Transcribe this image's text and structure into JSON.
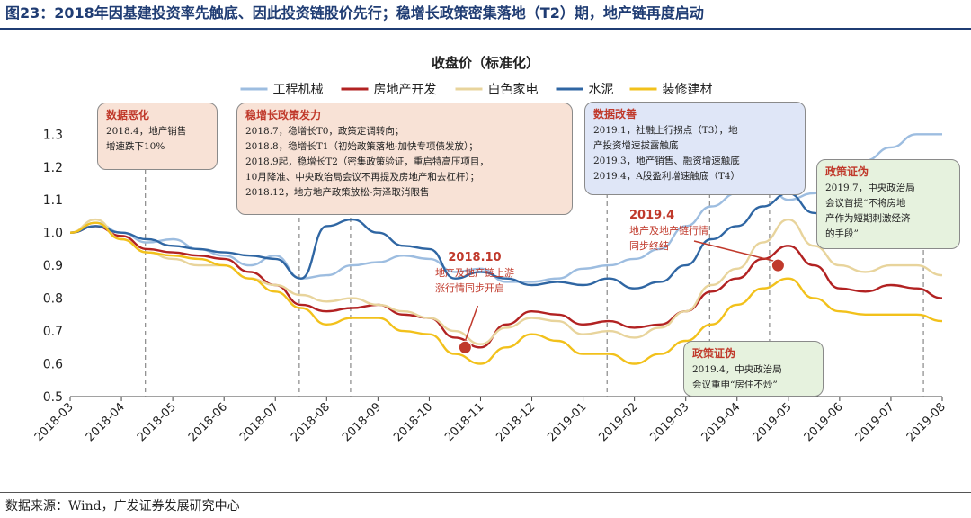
{
  "caption": "图23：2018年因基建投资率先触底、因此投资链股价先行；稳增长政策密集落地（T2）期，地产链再度启动",
  "source": "数据来源：Wind，广发证券发展研究中心",
  "colors": {
    "caption": "#1f3c73",
    "annotation_red": "#c0392b",
    "box_beige": "#f8e2d6",
    "box_blue": "#dfe6f7",
    "box_green": "#e6f2de"
  },
  "annotations": {
    "boxes": [
      {
        "title": "数据恶化",
        "lines": [
          "2018.4，地产销售",
          "增速跌下10%"
        ],
        "fill": "#f8e2d6"
      },
      {
        "title": "稳增长政策发力",
        "lines": [
          "2018.7，稳增长T0，政策定调转向；",
          "2018.8，稳增长T1（初始政策落地-加快专项债发放）；",
          "2018.9起，稳增长T2（密集政策验证，重启特高压项目，",
          "10月降准、中央政治局会议不再提及房地产和去杠杆）；",
          "2018.12，地方地产政策放松-菏泽取消限售"
        ],
        "fill": "#f8e2d6"
      },
      {
        "title": "数据改善",
        "lines": [
          "2019.1，社融上行拐点（T3），地",
          "产投资增速拔露触底",
          "2019.3，地产销售、融资增速触底",
          "2019.4，A股盈利增速触底（T4）"
        ],
        "fill": "#dfe6f7"
      },
      {
        "title": "政策证伪",
        "lines": [
          "2019.7，中央政治局",
          "会议首提“不将房地",
          "产作为短期刺激经济",
          "的手段”"
        ],
        "fill": "#e6f2de"
      },
      {
        "title": "政策证伪",
        "lines": [
          "2019.4，中央政治局",
          "会议重申“房住不炒”"
        ],
        "fill": "#e6f2de"
      }
    ],
    "red_labels": [
      {
        "date": "2018.10",
        "lines": [
          "地产及地产链上游",
          "涨行情同步开启"
        ]
      },
      {
        "date": "2019.4",
        "lines": [
          "地产及地产链行情",
          "同步终结"
        ]
      }
    ]
  },
  "chart_data": {
    "type": "line",
    "title": "收盘价（标准化）",
    "xlabel": "",
    "ylabel": "",
    "x_ticks": [
      "2018-03",
      "2018-04",
      "2018-05",
      "2018-06",
      "2018-07",
      "2018-08",
      "2018-09",
      "2018-10",
      "2018-11",
      "2018-12",
      "2019-01",
      "2019-02",
      "2019-03",
      "2019-04",
      "2019-05",
      "2019-06",
      "2019-07",
      "2019-08"
    ],
    "y_ticks": [
      0.5,
      0.6,
      0.7,
      0.8,
      0.9,
      1.0,
      1.1,
      1.2,
      1.3
    ],
    "ylim": [
      0.5,
      1.32
    ],
    "grid": false,
    "legend": "top",
    "x_step": "half-month",
    "x_start": "2018-03-01",
    "event_lines": [
      "2018-04-15",
      "2018-07-15",
      "2018-08-15",
      "2019-01-15",
      "2019-03-15",
      "2019-04-20",
      "2019-07-20"
    ],
    "markers": [
      {
        "x": "2018-10-22",
        "y": 0.65,
        "color": "#c0392b"
      },
      {
        "x": "2019-04-25",
        "y": 0.9,
        "color": "#c0392b"
      }
    ],
    "series": [
      {
        "name": "工程机械",
        "color": "#9dbde0",
        "values": [
          1.0,
          1.03,
          1.0,
          0.97,
          0.98,
          0.95,
          0.93,
          0.9,
          0.93,
          0.86,
          0.87,
          0.9,
          0.91,
          0.93,
          0.92,
          0.88,
          0.89,
          0.85,
          0.85,
          0.86,
          0.89,
          0.9,
          0.92,
          0.95,
          1.02,
          1.08,
          1.12,
          1.17,
          1.1,
          1.12,
          1.18,
          1.22,
          1.26,
          1.3,
          1.3
        ]
      },
      {
        "name": "房地产开发",
        "color": "#b22222",
        "values": [
          1.0,
          1.02,
          0.99,
          0.95,
          0.94,
          0.93,
          0.92,
          0.88,
          0.84,
          0.78,
          0.76,
          0.77,
          0.78,
          0.75,
          0.74,
          0.68,
          0.65,
          0.72,
          0.76,
          0.75,
          0.72,
          0.73,
          0.71,
          0.72,
          0.76,
          0.82,
          0.86,
          0.92,
          0.96,
          0.9,
          0.83,
          0.82,
          0.84,
          0.83,
          0.8
        ]
      },
      {
        "name": "白色家电",
        "color": "#e8d49c",
        "values": [
          1.0,
          1.04,
          0.98,
          0.94,
          0.92,
          0.9,
          0.9,
          0.86,
          0.84,
          0.81,
          0.79,
          0.8,
          0.78,
          0.76,
          0.74,
          0.7,
          0.66,
          0.71,
          0.74,
          0.73,
          0.69,
          0.7,
          0.68,
          0.71,
          0.76,
          0.84,
          0.89,
          0.97,
          1.04,
          0.96,
          0.9,
          0.88,
          0.9,
          0.9,
          0.87
        ]
      },
      {
        "name": "水泥",
        "color": "#2f66a3",
        "values": [
          1.0,
          1.02,
          1.0,
          0.98,
          0.96,
          0.95,
          0.94,
          0.93,
          0.92,
          0.86,
          1.02,
          1.04,
          1.0,
          0.96,
          0.95,
          0.86,
          0.88,
          0.86,
          0.84,
          0.85,
          0.84,
          0.86,
          0.83,
          0.85,
          0.9,
          0.98,
          1.02,
          1.08,
          1.12,
          1.06,
          1.01,
          1.05,
          1.1,
          1.12,
          1.1
        ]
      },
      {
        "name": "装修建材",
        "color": "#f2c11b",
        "values": [
          1.0,
          1.03,
          0.98,
          0.94,
          0.93,
          0.92,
          0.9,
          0.86,
          0.82,
          0.77,
          0.72,
          0.74,
          0.74,
          0.7,
          0.69,
          0.63,
          0.6,
          0.65,
          0.69,
          0.67,
          0.63,
          0.63,
          0.6,
          0.63,
          0.67,
          0.72,
          0.78,
          0.83,
          0.86,
          0.8,
          0.76,
          0.75,
          0.75,
          0.75,
          0.73
        ]
      }
    ]
  }
}
